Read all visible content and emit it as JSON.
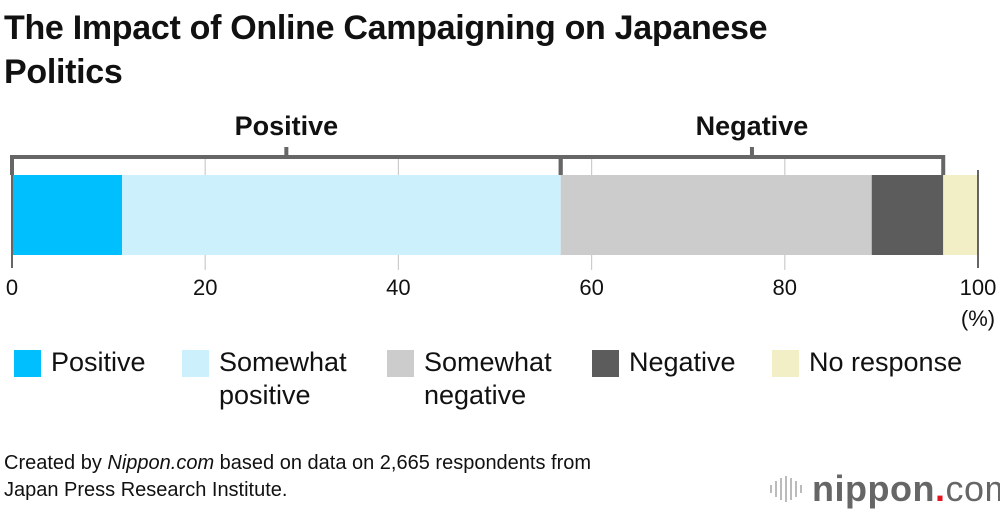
{
  "title": "The Impact of Online Campaigning on Japanese Politics",
  "chart_data": {
    "type": "bar",
    "orientation": "horizontal-stacked-100",
    "categories": [
      "Positive",
      "Somewhat positive",
      "Somewhat negative",
      "Negative",
      "No response"
    ],
    "values": [
      11.4,
      45.4,
      32.2,
      7.4,
      3.6
    ],
    "colors": [
      "#00bfff",
      "#cdf0fd",
      "#cccccc",
      "#5c5c5c",
      "#f2efc6"
    ],
    "groups": [
      {
        "label": "Positive",
        "from": 0,
        "to": 56.8
      },
      {
        "label": "Negative",
        "from": 56.8,
        "to": 96.4
      }
    ],
    "xlim": [
      0,
      100
    ],
    "xticks": [
      "0",
      "20",
      "40",
      "60",
      "80",
      "100"
    ],
    "xticks_values": [
      0,
      20,
      40,
      60,
      80,
      100
    ],
    "xunit": "(%)",
    "grid": true,
    "legend": "bottom"
  },
  "legend": [
    {
      "line1": "Positive",
      "line2": ""
    },
    {
      "line1": "Somewhat",
      "line2": "positive"
    },
    {
      "line1": "Somewhat",
      "line2": "negative"
    },
    {
      "line1": "Negative",
      "line2": ""
    },
    {
      "line1": "No response",
      "line2": ""
    }
  ],
  "note": {
    "prefix": "Created by ",
    "source": "Nippon.com",
    "suffix": " based on data on 2,665 respondents from",
    "line2": "Japan Press Research Institute."
  },
  "logo": {
    "name": "nippon",
    "dot": ".",
    "tld": "com"
  }
}
